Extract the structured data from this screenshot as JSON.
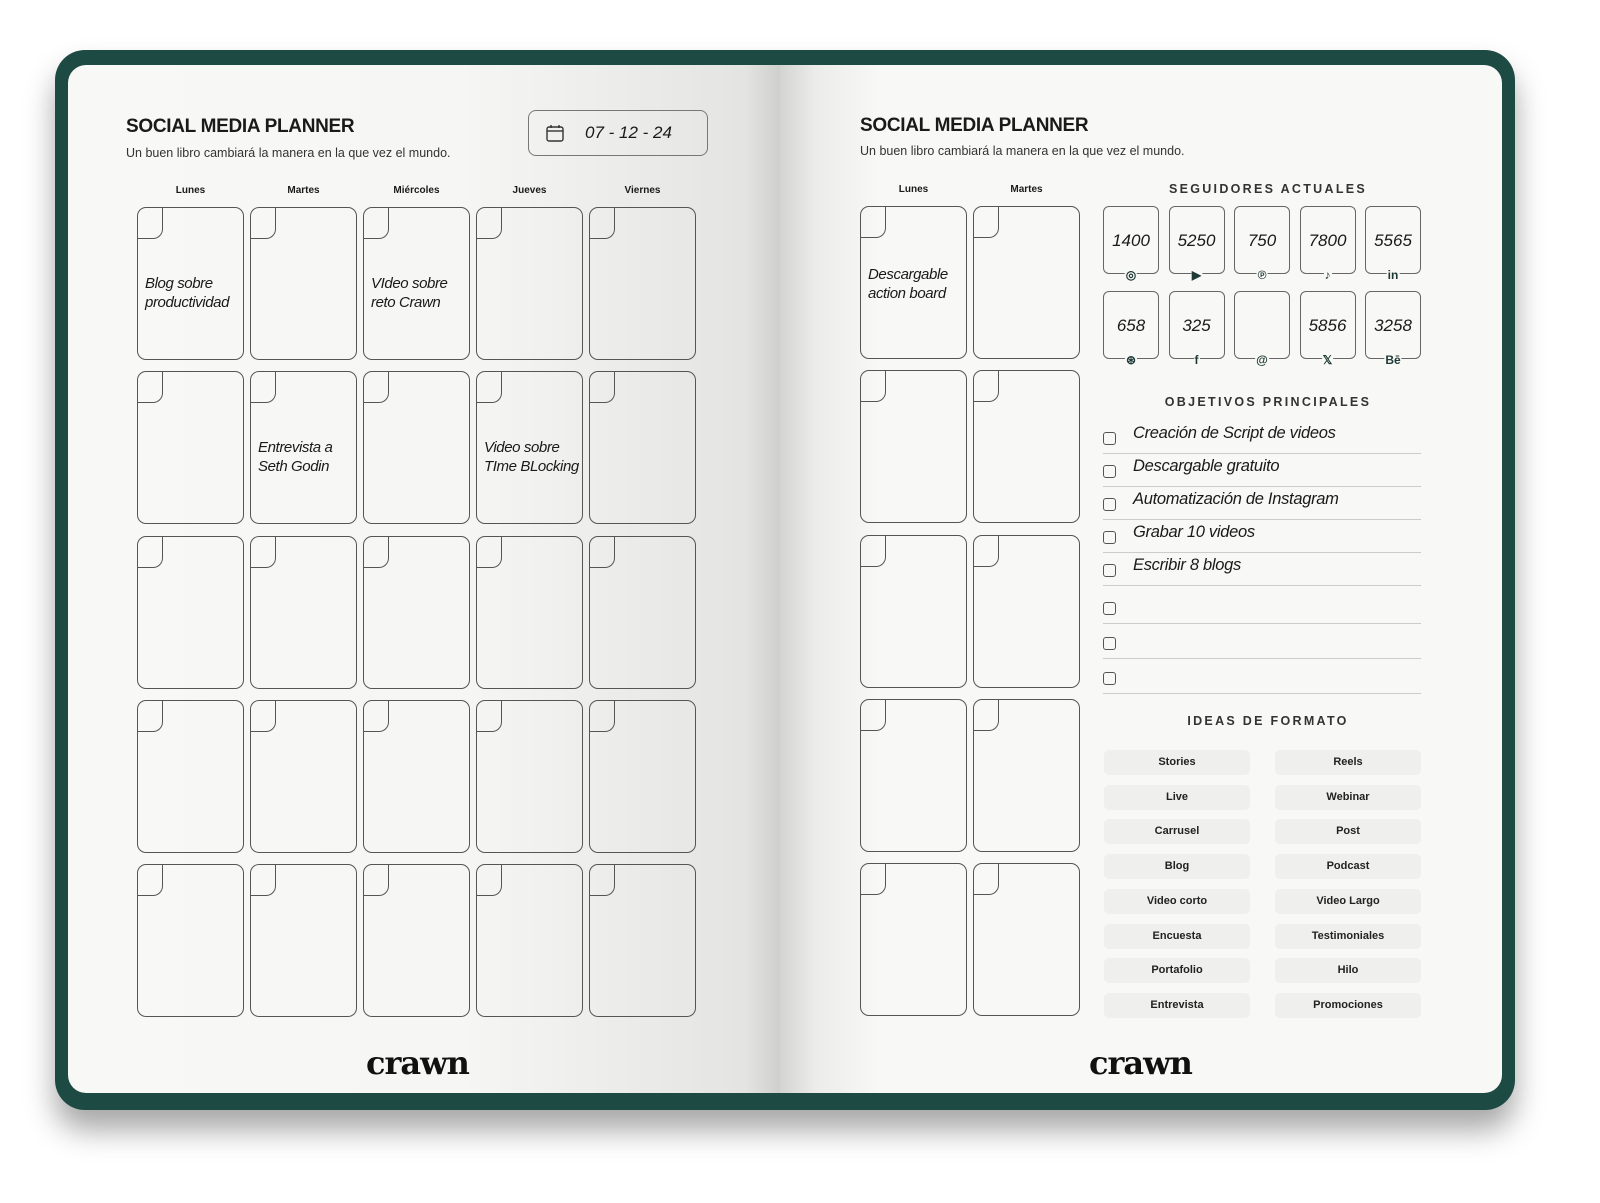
{
  "colors": {
    "cover": "#1e4a44",
    "page": "#f7f7f5"
  },
  "left": {
    "title": "SOCIAL MEDIA PLANNER",
    "subtitle": "Un buen libro cambiará la manera en la que vez el mundo.",
    "date": "07 - 12 - 24",
    "date_icon": "calendar-icon",
    "days": [
      "Lunes",
      "Martes",
      "Miércoles",
      "Jueves",
      "Viernes"
    ],
    "notes": [
      [
        "Blog sobre productividad",
        "",
        "VIdeo sobre reto Crawn",
        "",
        ""
      ],
      [
        "",
        "Entrevista a Seth Godin",
        "",
        "Video sobre TIme BLocking",
        ""
      ],
      [
        "",
        "",
        "",
        "",
        ""
      ],
      [
        "",
        "",
        "",
        "",
        ""
      ],
      [
        "",
        "",
        "",
        "",
        ""
      ]
    ],
    "logo": "crawn"
  },
  "right": {
    "title": "SOCIAL MEDIA PLANNER",
    "subtitle": "Un buen libro cambiará la manera en la que vez el mundo.",
    "days": [
      "Lunes",
      "Martes"
    ],
    "notes": [
      [
        "Descargable action board",
        ""
      ],
      [
        "",
        ""
      ],
      [
        "",
        ""
      ],
      [
        "",
        ""
      ],
      [
        "",
        ""
      ]
    ],
    "followers_title": "SEGUIDORES ACTUALES",
    "followers": [
      {
        "count": "1400",
        "icon": "instagram-icon",
        "glyph": "◎"
      },
      {
        "count": "5250",
        "icon": "youtube-icon",
        "glyph": "▶"
      },
      {
        "count": "750",
        "icon": "pinterest-icon",
        "glyph": "℗"
      },
      {
        "count": "7800",
        "icon": "tiktok-icon",
        "glyph": "♪"
      },
      {
        "count": "5565",
        "icon": "linkedin-icon",
        "glyph": "in"
      },
      {
        "count": "658",
        "icon": "dribbble-icon",
        "glyph": "⊛"
      },
      {
        "count": "325",
        "icon": "facebook-icon",
        "glyph": "f"
      },
      {
        "count": "",
        "icon": "threads-icon",
        "glyph": "@"
      },
      {
        "count": "5856",
        "icon": "x-icon",
        "glyph": "𝕏"
      },
      {
        "count": "3258",
        "icon": "behance-icon",
        "glyph": "Bē"
      }
    ],
    "goals_title": "OBJETIVOS PRINCIPALES",
    "goals": [
      "Creación de Script de videos",
      "Descargable gratuito",
      "Automatización de Instagram",
      "Grabar 10 videos",
      "Escribir 8 blogs",
      "",
      "",
      ""
    ],
    "formats_title": "IDEAS DE FORMATO",
    "formats": [
      "Stories",
      "Reels",
      "Live",
      "Webinar",
      "Carrusel",
      "Post",
      "Blog",
      "Podcast",
      "Video corto",
      "Video Largo",
      "Encuesta",
      "Testimoniales",
      "Portafolio",
      "Hilo",
      "Entrevista",
      "Promociones"
    ],
    "logo": "crawn"
  }
}
